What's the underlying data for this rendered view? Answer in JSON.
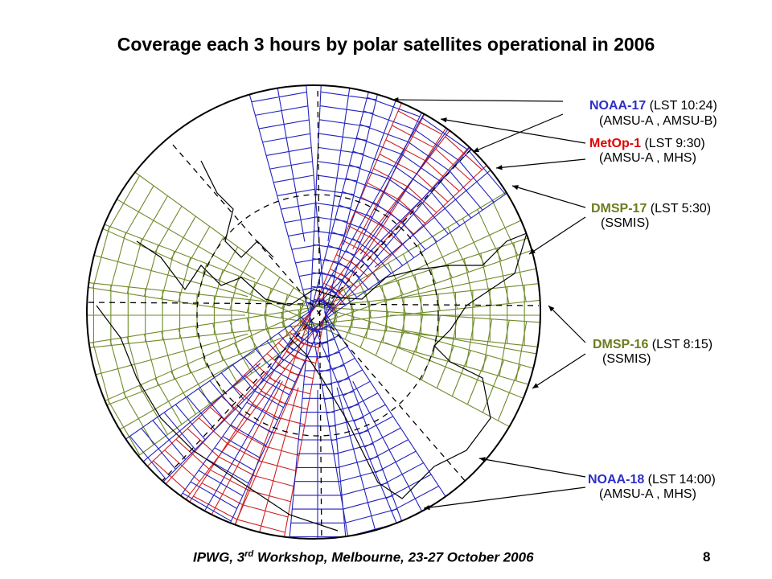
{
  "title": "Coverage each 3 hours by polar satellites operational in 2006",
  "colors": {
    "noaa": "#2e2ec8",
    "metop": "#e00000",
    "dmsp": "#6b7d1e",
    "blue_swath": "#2222bb",
    "red_swath": "#cc2222",
    "green_swath": "#6f8a2a"
  },
  "labels": {
    "noaa17_name": "NOAA-17",
    "noaa17_lst": " (LST 10:24)",
    "noaa17_instr": "(AMSU-A , AMSU-B)",
    "metop_name": "MetOp-1",
    "metop_lst": " (LST 9:30)",
    "metop_instr": "(AMSU-A , MHS)",
    "dmsp17_name": "DMSP-17",
    "dmsp17_lst": " (LST 5:30)",
    "dmsp17_instr": "(SSMIS)",
    "dmsp16_name": "DMSP-16",
    "dmsp16_lst": " (LST 8:15)",
    "dmsp16_instr": "(SSMIS)",
    "noaa18_name": "NOAA-18",
    "noaa18_lst": " (LST 14:00)",
    "noaa18_instr": "(AMSU-A , MHS)"
  },
  "footer": {
    "pre": "IPWG, 3",
    "sup": "rd",
    "post": " Workshop, Melbourne, 23-27 October 2006",
    "page": "8"
  }
}
